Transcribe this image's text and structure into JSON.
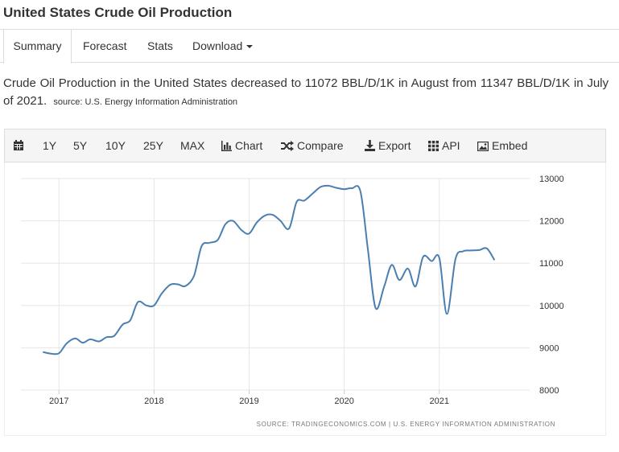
{
  "page": {
    "title": "United States Crude Oil Production"
  },
  "tabs": [
    {
      "label": "Summary",
      "active": true
    },
    {
      "label": "Forecast"
    },
    {
      "label": "Stats"
    },
    {
      "label": "Download"
    }
  ],
  "description": {
    "text": "Crude Oil Production in the United States decreased to 11072 BBL/D/1K in August from 11347 BBL/D/1K in July of 2021.",
    "source": "source: U.S. Energy Information Administration"
  },
  "toolbar": {
    "calendar_icon": "calendar-icon",
    "range_1y": "1Y",
    "range_5y": "5Y",
    "range_10y": "10Y",
    "range_25y": "25Y",
    "range_max": "MAX",
    "chart": "Chart",
    "compare": "Compare",
    "export": "Export",
    "api": "API",
    "embed": "Embed"
  },
  "colors": {
    "line": "#4a7fb0",
    "grid": "#e6e6e6",
    "axis_text": "#333333"
  },
  "chart_data": {
    "type": "line",
    "title": "United States Crude Oil Production",
    "xlabel": "",
    "ylabel": "",
    "unit": "BBL/D/1K",
    "ylim": [
      8000,
      13000
    ],
    "yticks": [
      8000,
      9000,
      10000,
      11000,
      12000,
      13000
    ],
    "xticks": [
      {
        "label": "2017",
        "value": 2017.0
      },
      {
        "label": "2018",
        "value": 2018.0
      },
      {
        "label": "2019",
        "value": 2019.0
      },
      {
        "label": "2020",
        "value": 2020.0
      },
      {
        "label": "2021",
        "value": 2021.0
      }
    ],
    "xlim": [
      2016.6,
      2021.95
    ],
    "grid": true,
    "credits": "SOURCE: TRADINGECONOMICS.COM  |  U.S. ENERGY INFORMATION ADMINISTRATION",
    "series": [
      {
        "name": "Crude Oil Production",
        "x": [
          2016.83,
          2016.92,
          2017.0,
          2017.08,
          2017.17,
          2017.25,
          2017.33,
          2017.42,
          2017.5,
          2017.58,
          2017.67,
          2017.75,
          2017.83,
          2017.92,
          2018.0,
          2018.08,
          2018.17,
          2018.25,
          2018.33,
          2018.42,
          2018.5,
          2018.58,
          2018.67,
          2018.75,
          2018.83,
          2018.92,
          2019.0,
          2019.08,
          2019.17,
          2019.25,
          2019.33,
          2019.42,
          2019.5,
          2019.58,
          2019.67,
          2019.75,
          2019.83,
          2019.92,
          2020.0,
          2020.08,
          2020.17,
          2020.25,
          2020.33,
          2020.42,
          2020.5,
          2020.58,
          2020.67,
          2020.75,
          2020.83,
          2020.92,
          2021.0,
          2021.08,
          2021.17,
          2021.25,
          2021.33,
          2021.42,
          2021.5,
          2021.58
        ],
        "values": [
          8900,
          8860,
          8870,
          9100,
          9220,
          9120,
          9200,
          9150,
          9250,
          9280,
          9550,
          9650,
          10080,
          10000,
          10000,
          10280,
          10490,
          10500,
          10460,
          10700,
          11400,
          11480,
          11550,
          11920,
          12000,
          11780,
          11700,
          11960,
          12130,
          12140,
          12000,
          11820,
          12450,
          12480,
          12650,
          12800,
          12830,
          12780,
          12750,
          12770,
          12700,
          11300,
          9940,
          10450,
          10960,
          10600,
          10870,
          10450,
          11150,
          11050,
          11120,
          9800,
          11100,
          11280,
          11300,
          11310,
          11347,
          11072
        ]
      }
    ]
  }
}
